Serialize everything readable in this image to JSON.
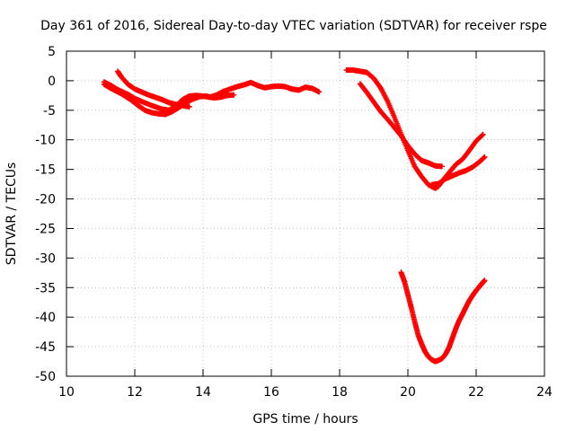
{
  "chart_data": {
    "type": "scatter",
    "title": "Day 361 of 2016, Sidereal Day-to-day VTEC variation (SDTVAR) for receiver rspe",
    "xlabel": "GPS time / hours",
    "ylabel": "SDTVAR / TECUs",
    "xlim": [
      10,
      24
    ],
    "ylim": [
      -50,
      5
    ],
    "xticks": [
      "10",
      "12",
      "14",
      "16",
      "18",
      "20",
      "22",
      "24"
    ],
    "yticks": [
      "5",
      "0",
      "-5",
      "-10",
      "-15",
      "-20",
      "-25",
      "-30",
      "-35",
      "-40",
      "-45",
      "-50"
    ],
    "grid": true,
    "marker": "plus",
    "color": "#ff0000",
    "series": [
      {
        "x": [
          11.1,
          11.3,
          11.5,
          11.8,
          12.0,
          12.2,
          12.5,
          12.8,
          13.0,
          13.2,
          13.4,
          13.6,
          13.8,
          14.0,
          14.2,
          14.4,
          14.6,
          14.8,
          15.0,
          15.2,
          15.4,
          15.6,
          15.8,
          16.0,
          16.2,
          16.4,
          16.6,
          16.8,
          17.0,
          17.2,
          17.4
        ],
        "y": [
          -0.2,
          -0.8,
          -1.5,
          -2.3,
          -3.0,
          -3.5,
          -4.2,
          -4.8,
          -5.0,
          -4.3,
          -3.2,
          -2.6,
          -2.5,
          -2.6,
          -2.8,
          -2.4,
          -1.8,
          -1.4,
          -1.0,
          -0.7,
          -0.3,
          -0.8,
          -1.2,
          -1.0,
          -0.9,
          -1.0,
          -1.4,
          -1.6,
          -1.1,
          -1.3,
          -1.9
        ]
      },
      {
        "x": [
          11.1,
          11.3,
          11.6,
          11.9,
          12.1,
          12.3,
          12.5,
          12.7,
          12.9,
          13.1,
          13.3,
          13.5,
          13.7,
          13.9,
          14.1,
          14.3,
          14.5,
          14.7,
          14.9
        ],
        "y": [
          -0.6,
          -1.3,
          -2.2,
          -3.3,
          -4.2,
          -5.0,
          -5.4,
          -5.6,
          -5.7,
          -5.2,
          -4.5,
          -3.7,
          -3.1,
          -2.7,
          -2.6,
          -2.9,
          -2.8,
          -2.5,
          -2.4
        ]
      },
      {
        "x": [
          11.5,
          11.6,
          11.8,
          12.0,
          12.2,
          12.4,
          12.6,
          12.8,
          13.0,
          13.2,
          13.4,
          13.6
        ],
        "y": [
          1.6,
          0.7,
          -0.6,
          -1.4,
          -1.9,
          -2.4,
          -2.8,
          -3.2,
          -3.7,
          -4.0,
          -4.2,
          -4.4
        ]
      },
      {
        "x": [
          18.2,
          18.4,
          18.6,
          18.8,
          19.0,
          19.2,
          19.4,
          19.6,
          19.8,
          20.0,
          20.2,
          20.4,
          20.6,
          20.8,
          20.9,
          21.0,
          21.2,
          21.4,
          21.6,
          21.8,
          22.0,
          22.2
        ],
        "y": [
          1.8,
          1.8,
          1.6,
          1.4,
          0.4,
          -1.2,
          -3.4,
          -6.1,
          -9.0,
          -11.8,
          -14.5,
          -16.2,
          -17.6,
          -18.2,
          -17.8,
          -17.0,
          -15.6,
          -14.2,
          -13.3,
          -11.8,
          -10.2,
          -9.1
        ]
      },
      {
        "x": [
          18.6,
          18.8,
          19.0,
          19.2,
          19.4,
          19.6,
          19.8,
          20.0,
          20.2,
          20.4,
          20.6,
          20.8,
          21.0
        ],
        "y": [
          -0.5,
          -2.0,
          -3.6,
          -5.2,
          -6.5,
          -7.9,
          -9.3,
          -11.0,
          -12.4,
          -13.5,
          -13.9,
          -14.4,
          -14.5
        ]
      },
      {
        "x": [
          20.7,
          20.9,
          21.1,
          21.3,
          21.5,
          21.7,
          21.9,
          22.1,
          22.25
        ],
        "y": [
          -17.6,
          -17.4,
          -16.6,
          -16.1,
          -15.6,
          -15.2,
          -14.6,
          -13.7,
          -12.9
        ]
      },
      {
        "x": [
          19.8,
          19.9,
          20.0,
          20.1,
          20.2,
          20.3,
          20.4,
          20.5,
          20.6,
          20.7,
          20.8,
          20.9,
          21.0,
          21.1,
          21.2,
          21.3,
          21.4,
          21.5,
          21.6,
          21.7,
          21.8,
          21.9,
          22.0,
          22.1,
          22.2,
          22.25
        ],
        "y": [
          -32.4,
          -34.0,
          -36.2,
          -38.4,
          -40.8,
          -43.0,
          -44.5,
          -45.8,
          -46.7,
          -47.2,
          -47.5,
          -47.3,
          -47.0,
          -46.3,
          -45.2,
          -43.6,
          -42.0,
          -40.6,
          -39.5,
          -38.3,
          -37.2,
          -36.3,
          -35.5,
          -34.8,
          -34.1,
          -33.8
        ]
      }
    ]
  }
}
